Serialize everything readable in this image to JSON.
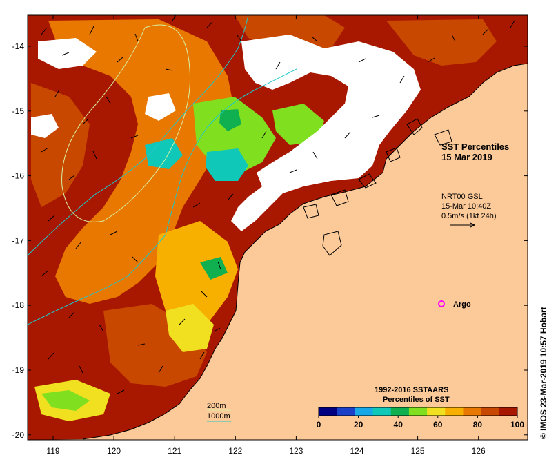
{
  "map": {
    "title_line1": "SST Percentiles",
    "title_line2": "15 Mar 2019",
    "current_source": "NRT00 GSL",
    "current_time": "15-Mar 10:40Z",
    "current_scale": "0.5m/s (1kt 24h)",
    "argo_label": "Argo",
    "credit": "© IMOS 23-Mar-2019 10:57 Hobart",
    "contour_200_label": "200m",
    "contour_1000_label": "1000m",
    "legend_title_line1": "1992-2016 SSTAARS",
    "legend_title_line2": "Percentiles of SST",
    "x_ticks": [
      "119",
      "120",
      "121",
      "122",
      "123",
      "124",
      "125",
      "126"
    ],
    "y_ticks": [
      "-14",
      "-15",
      "-16",
      "-17",
      "-18",
      "-19",
      "-20"
    ],
    "legend_ticks": [
      "0",
      "20",
      "40",
      "60",
      "80",
      "100"
    ],
    "legend_colors": [
      "#000080",
      "#1a3fc8",
      "#18a8e8",
      "#10c8b8",
      "#10b050",
      "#80e020",
      "#f0e020",
      "#f8b000",
      "#e87800",
      "#c84800",
      "#a81800"
    ],
    "colors": {
      "land": "#fcc999",
      "no_data": "#ffffff",
      "contour_200": "#d8f0a0",
      "contour_1000": "#20c8c8",
      "argo": "#ff00ff"
    }
  }
}
